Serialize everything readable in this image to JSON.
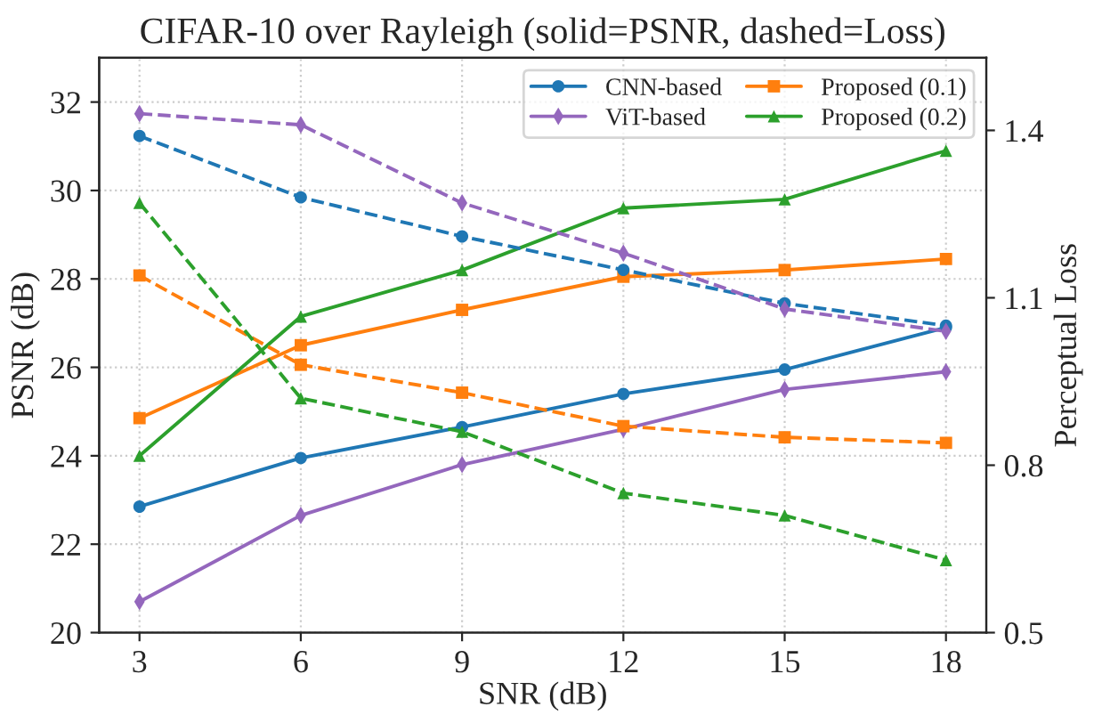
{
  "chart_data": {
    "type": "line",
    "title": "CIFAR-10 over Rayleigh (solid=PSNR, dashed=Loss)",
    "xlabel": "SNR (dB)",
    "ylabel": "PSNR (dB)",
    "y2label": "Perceptual Loss",
    "x": [
      3,
      6,
      9,
      12,
      15,
      18
    ],
    "xlim": [
      2.25,
      18.75
    ],
    "xticks": [
      3,
      6,
      9,
      12,
      15,
      18
    ],
    "ylim": [
      20,
      33
    ],
    "yticks": [
      20,
      22,
      24,
      26,
      28,
      30,
      32
    ],
    "y2lim": [
      0.5,
      1.53
    ],
    "y2ticks": [
      0.5,
      0.8,
      1.1,
      1.4
    ],
    "grid": true,
    "legend": "top right",
    "series": [
      {
        "name": "CNN-based",
        "color": "#1f77b4",
        "marker": "circle",
        "line_style": "solid",
        "values": [
          22.85,
          23.95,
          24.65,
          25.4,
          25.95,
          26.9
        ]
      },
      {
        "name": "ViT-based",
        "color": "#9467bd",
        "marker": "diamond",
        "line_style": "solid",
        "values": [
          20.7,
          22.65,
          23.8,
          24.6,
          25.5,
          25.9
        ]
      },
      {
        "name": "Proposed (0.1)",
        "color": "#ff7f0e",
        "marker": "square",
        "line_style": "solid",
        "values": [
          24.85,
          26.5,
          27.3,
          28.05,
          28.2,
          28.45
        ]
      },
      {
        "name": "Proposed (0.2)",
        "color": "#2ca02c",
        "marker": "triangle",
        "line_style": "solid",
        "values": [
          24.0,
          27.15,
          28.2,
          29.6,
          29.8,
          30.9
        ]
      },
      {
        "color": "#1f77b4",
        "marker": "circle",
        "line_style": "dashed",
        "axis": "y2",
        "values": [
          1.39,
          1.28,
          1.21,
          1.15,
          1.09,
          1.05
        ]
      },
      {
        "color": "#9467bd",
        "marker": "diamond",
        "line_style": "dashed",
        "axis": "y2",
        "values": [
          1.43,
          1.41,
          1.27,
          1.18,
          1.08,
          1.04
        ]
      },
      {
        "color": "#ff7f0e",
        "marker": "square",
        "line_style": "dashed",
        "axis": "y2",
        "values": [
          1.14,
          0.98,
          0.93,
          0.87,
          0.85,
          0.84
        ]
      },
      {
        "color": "#2ca02c",
        "marker": "triangle",
        "line_style": "dashed",
        "axis": "y2",
        "values": [
          1.27,
          0.92,
          0.86,
          0.75,
          0.71,
          0.63
        ]
      }
    ]
  }
}
